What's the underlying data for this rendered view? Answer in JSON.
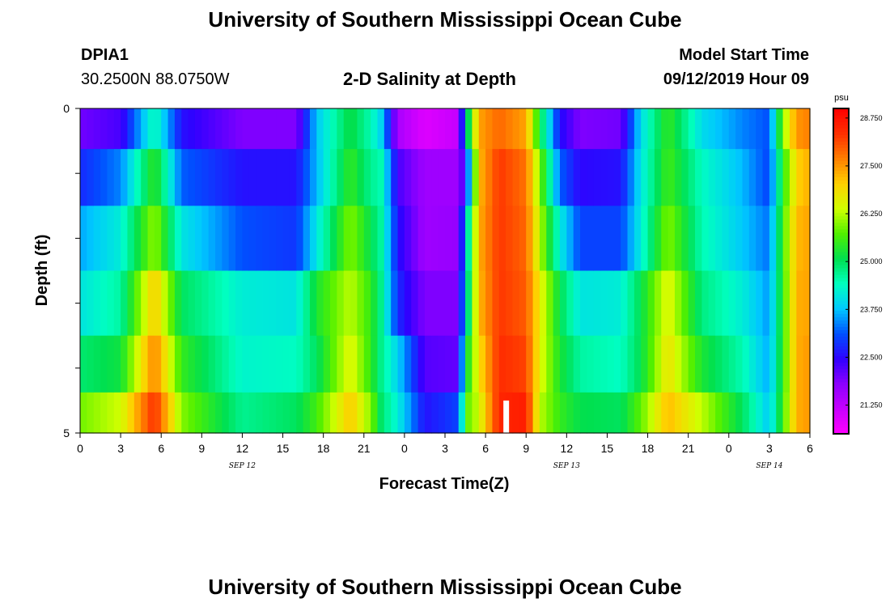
{
  "header": {
    "title": "University of Southern Mississippi Ocean Cube",
    "station": "DPIA1",
    "coords": "30.2500N 88.0750W",
    "subtitle": "2-D Salinity at Depth",
    "model_start_label": "Model Start Time",
    "model_start_value": "09/12/2019 Hour 09"
  },
  "footer": {
    "title": "University of Southern Mississippi Ocean Cube"
  },
  "colors": {
    "scale": [
      "#ff00ff",
      "#c800ff",
      "#8c00ff",
      "#3000ff",
      "#0050ff",
      "#00c8ff",
      "#00ffc0",
      "#00e050",
      "#50f000",
      "#d0ff00",
      "#ffd000",
      "#ff8000",
      "#ff3000",
      "#ff0000"
    ],
    "marker": "#ffffff"
  },
  "chart_data": {
    "type": "heatmap",
    "title": "2-D Salinity at Depth",
    "xlabel": "Forecast Time(Z)",
    "ylabel": "Depth (ft)",
    "x_ticks": [
      "0",
      "3",
      "6",
      "9",
      "12",
      "15",
      "18",
      "21",
      "0",
      "3",
      "6",
      "9",
      "12",
      "15",
      "18",
      "21",
      "0",
      "3",
      "6"
    ],
    "x_hours": [
      0,
      3,
      6,
      9,
      12,
      15,
      18,
      21,
      24,
      27,
      30,
      33,
      36,
      39,
      42,
      45,
      48,
      51,
      54
    ],
    "date_labels": [
      {
        "text": "SEP 12",
        "hour": 12
      },
      {
        "text": "SEP 13",
        "hour": 36
      },
      {
        "text": "SEP 14",
        "hour": 51
      }
    ],
    "xlim": [
      0,
      54
    ],
    "y_ticks": [
      "0",
      "5"
    ],
    "ylim": [
      0,
      5
    ],
    "depth_rows": [
      0.25,
      1.0,
      2.0,
      3.0,
      4.0,
      4.75
    ],
    "colorbar": {
      "unit": "psu",
      "range": [
        20.5,
        29.0
      ],
      "ticks": [
        "21.250",
        "22.500",
        "23.750",
        "25.000",
        "26.250",
        "27.500",
        "28.750"
      ],
      "tick_values": [
        21.25,
        22.5,
        23.75,
        25.0,
        26.25,
        27.5,
        28.75
      ]
    },
    "profile_anchors": [
      {
        "hour": 0,
        "values": [
          22.0,
          22.8,
          23.6,
          24.1,
          24.9,
          25.9
        ]
      },
      {
        "hour": 3,
        "values": [
          22.3,
          23.4,
          24.2,
          24.6,
          25.2,
          26.4
        ]
      },
      {
        "hour": 5.5,
        "values": [
          24.5,
          25.5,
          26.1,
          27.1,
          27.7,
          28.4
        ]
      },
      {
        "hour": 7.5,
        "values": [
          22.6,
          23.2,
          24.1,
          25.0,
          25.5,
          26.0
        ]
      },
      {
        "hour": 12,
        "values": [
          21.9,
          22.6,
          23.1,
          24.2,
          24.3,
          24.7
        ]
      },
      {
        "hour": 16,
        "values": [
          21.9,
          22.6,
          22.9,
          24.1,
          24.4,
          25.0
        ]
      },
      {
        "hour": 17.5,
        "values": [
          23.8,
          23.7,
          24.1,
          25.3,
          25.0,
          25.6
        ]
      },
      {
        "hour": 20,
        "values": [
          25.2,
          25.5,
          26.0,
          26.3,
          26.6,
          27.1
        ]
      },
      {
        "hour": 21.5,
        "values": [
          24.5,
          24.7,
          25.1,
          25.5,
          25.5,
          26.0
        ]
      },
      {
        "hour": 22.3,
        "values": [
          23.9,
          24.5,
          24.6,
          24.7,
          24.7,
          24.9
        ]
      },
      {
        "hour": 23.5,
        "values": [
          21.5,
          22.3,
          22.6,
          22.8,
          23.9,
          24.2
        ]
      },
      {
        "hour": 25.5,
        "values": [
          20.9,
          21.6,
          21.6,
          21.9,
          22.2,
          22.6
        ]
      },
      {
        "hour": 28,
        "values": [
          21.2,
          21.6,
          21.7,
          21.9,
          22.1,
          23.0
        ]
      },
      {
        "hour": 28.6,
        "values": [
          24.6,
          22.8,
          24.1,
          24.4,
          25.2,
          25.8
        ]
      },
      {
        "hour": 29.5,
        "values": [
          27.4,
          27.2,
          27.3,
          27.2,
          26.8,
          26.4
        ]
      },
      {
        "hour": 31,
        "values": [
          27.9,
          28.3,
          28.3,
          28.3,
          28.4,
          28.5
        ]
      },
      {
        "hour": 33,
        "values": [
          27.4,
          27.8,
          27.9,
          28.0,
          28.2,
          28.6
        ]
      },
      {
        "hour": 34,
        "values": [
          25.2,
          26.0,
          26.3,
          26.7,
          26.6,
          26.3
        ]
      },
      {
        "hour": 35.5,
        "values": [
          22.6,
          23.2,
          24.2,
          25.1,
          25.3,
          25.5
        ]
      },
      {
        "hour": 37,
        "values": [
          21.9,
          22.5,
          23.0,
          24.1,
          24.6,
          25.1
        ]
      },
      {
        "hour": 40,
        "values": [
          22.0,
          22.6,
          23.0,
          24.2,
          24.4,
          25.0
        ]
      },
      {
        "hour": 41.5,
        "values": [
          24.0,
          24.1,
          24.2,
          25.1,
          25.1,
          25.8
        ]
      },
      {
        "hour": 43.5,
        "values": [
          25.5,
          25.6,
          26.0,
          26.6,
          26.8,
          27.2
        ]
      },
      {
        "hour": 46,
        "values": [
          24.0,
          24.4,
          24.5,
          24.8,
          25.3,
          26.3
        ]
      },
      {
        "hour": 49,
        "values": [
          23.4,
          23.7,
          23.8,
          24.2,
          24.5,
          25.0
        ]
      },
      {
        "hour": 51,
        "values": [
          23.1,
          23.0,
          23.3,
          23.5,
          23.6,
          23.8
        ]
      },
      {
        "hour": 52,
        "values": [
          26.0,
          25.4,
          25.6,
          25.5,
          25.5,
          25.6
        ]
      },
      {
        "hour": 53,
        "values": [
          27.5,
          27.0,
          27.2,
          27.3,
          27.3,
          27.3
        ]
      },
      {
        "hour": 54,
        "values": [
          27.7,
          27.3,
          27.4,
          27.4,
          27.5,
          27.5
        ]
      }
    ],
    "marker": {
      "hour": 31.5,
      "depth_from": 4.5,
      "depth_to": 5.0
    }
  }
}
